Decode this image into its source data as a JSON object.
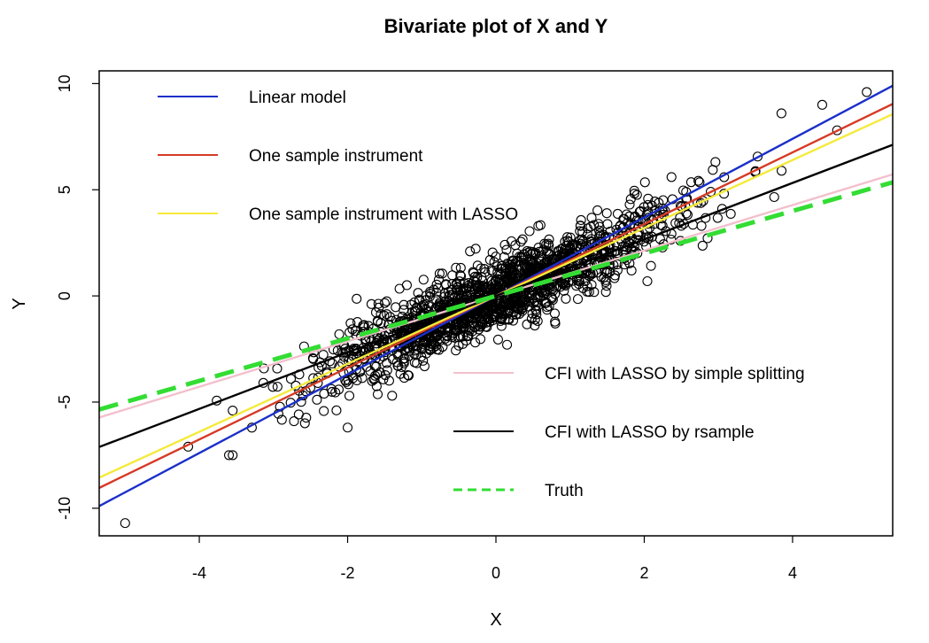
{
  "chart_data": {
    "type": "scatter",
    "title": "Bivariate plot of X and Y",
    "xlabel": "X",
    "ylabel": "Y",
    "xlim": [
      -5.35,
      5.35
    ],
    "ylim": [
      -11.3,
      10.6
    ],
    "xticks": [
      -4,
      -2,
      0,
      2,
      4
    ],
    "yticks": [
      -10,
      -5,
      0,
      5,
      10
    ],
    "grid": false,
    "scatter": {
      "marker": "open-circle",
      "color": "#000000",
      "n_points": 1600,
      "x_center": 0,
      "x_sd": 1.2,
      "slope": 1.55,
      "residual_sd": 0.85,
      "outliers": [
        {
          "x": -5.0,
          "y": -10.7
        },
        {
          "x": -4.15,
          "y": -7.1
        },
        {
          "x": -3.6,
          "y": -7.5
        },
        {
          "x": -3.55,
          "y": -7.5
        },
        {
          "x": -3.55,
          "y": -5.4
        },
        {
          "x": 4.4,
          "y": 9.0
        },
        {
          "x": 5.0,
          "y": 9.6
        },
        {
          "x": 3.85,
          "y": 8.6
        },
        {
          "x": 4.6,
          "y": 7.8
        },
        {
          "x": -2.0,
          "y": -6.2
        },
        {
          "x": -1.4,
          "y": -4.7
        },
        {
          "x": -0.35,
          "y": 2.1
        },
        {
          "x": 0.8,
          "y": -1.3
        },
        {
          "x": 0.15,
          "y": -2.3
        },
        {
          "x": 3.05,
          "y": 4.1
        }
      ]
    },
    "series": [
      {
        "name": "Linear model",
        "color": "#1a2fc9",
        "style": "solid",
        "intercept": 0.0,
        "slope": 1.85
      },
      {
        "name": "One sample instrument",
        "color": "#d63a26",
        "style": "solid",
        "intercept": 0.0,
        "slope": 1.69
      },
      {
        "name": "One sample instrument with LASSO",
        "color": "#f5ea3a",
        "style": "solid",
        "intercept": 0.0,
        "slope": 1.6
      },
      {
        "name": "CFI with LASSO by simple splitting",
        "color": "#f2c0cc",
        "style": "solid",
        "intercept": 0.0,
        "slope": 1.07
      },
      {
        "name": "CFI with LASSO by rsample",
        "color": "#000000",
        "style": "solid",
        "intercept": 0.0,
        "slope": 1.33
      },
      {
        "name": "Truth",
        "color": "#33dd33",
        "style": "dashed",
        "intercept": 0.0,
        "slope": 1.0
      }
    ],
    "legend": {
      "top_left": [
        "Linear model",
        "One sample instrument",
        "One sample instrument with LASSO"
      ],
      "bottom_right": [
        "CFI with LASSO by simple splitting",
        "CFI with LASSO by rsample",
        "Truth"
      ]
    }
  }
}
